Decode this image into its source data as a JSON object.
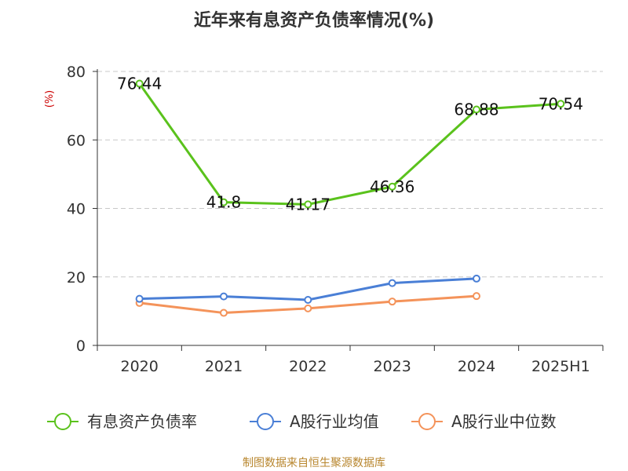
{
  "chart_data": {
    "type": "line",
    "title": "近年来有息资产负债率情况(%)",
    "ylabel": "(%)",
    "xlabel": "",
    "categories": [
      "2020",
      "2021",
      "2022",
      "2023",
      "2024",
      "2025H1"
    ],
    "ylim": [
      0,
      80
    ],
    "yticks": [
      0,
      20,
      40,
      60,
      80
    ],
    "grid": true,
    "legend_position": "bottom",
    "series": [
      {
        "name": "有息资产负债率",
        "color": "#5ac21c",
        "values": [
          76.44,
          41.8,
          41.17,
          46.36,
          68.88,
          70.54
        ],
        "labels": [
          "76.44",
          "41.8",
          "41.17",
          "46.36",
          "68.88",
          "70.54"
        ]
      },
      {
        "name": "A股行业均值",
        "color": "#4a7fd6",
        "values": [
          13.6,
          14.3,
          13.3,
          18.2,
          19.5,
          null
        ]
      },
      {
        "name": "A股行业中位数",
        "color": "#f4935a",
        "values": [
          12.4,
          9.5,
          10.8,
          12.8,
          14.4,
          null
        ]
      }
    ]
  },
  "source": "制图数据来自恒生聚源数据库"
}
